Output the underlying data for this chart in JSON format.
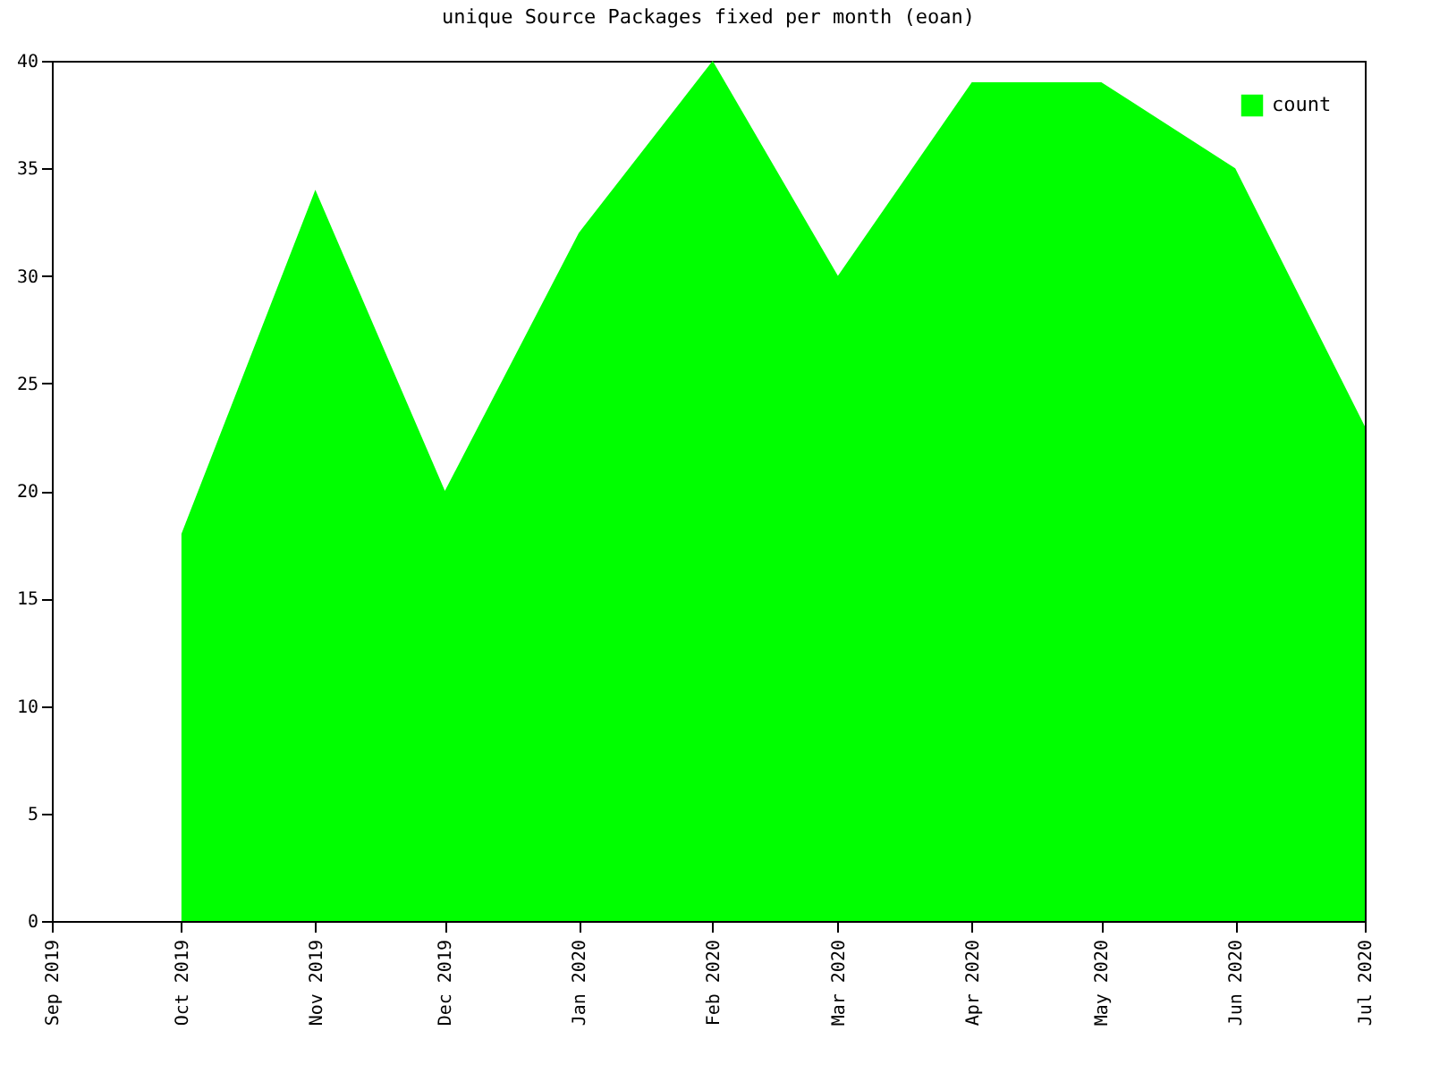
{
  "chart_data": {
    "type": "area",
    "title": "unique Source Packages fixed per month (eoan)",
    "x": [
      "2019-10",
      "2019-11",
      "2019-12",
      "2020-01",
      "2020-02",
      "2020-03",
      "2020-04",
      "2020-05",
      "2020-06",
      "2020-07"
    ],
    "series": [
      {
        "name": "count",
        "color": "#00ff00",
        "values": [
          18,
          34,
          20,
          32,
          40,
          30,
          39,
          39,
          35,
          23
        ]
      }
    ],
    "xlim": [
      "2019-09",
      "2020-07"
    ],
    "xticks": [
      {
        "value": "2019-09",
        "label": "Sep 2019"
      },
      {
        "value": "2019-10",
        "label": "Oct 2019"
      },
      {
        "value": "2019-11",
        "label": "Nov 2019"
      },
      {
        "value": "2019-12",
        "label": "Dec 2019"
      },
      {
        "value": "2020-01",
        "label": "Jan 2020"
      },
      {
        "value": "2020-02",
        "label": "Feb 2020"
      },
      {
        "value": "2020-03",
        "label": "Mar 2020"
      },
      {
        "value": "2020-04",
        "label": "Apr 2020"
      },
      {
        "value": "2020-05",
        "label": "May 2020"
      },
      {
        "value": "2020-06",
        "label": "Jun 2020"
      },
      {
        "value": "2020-07",
        "label": "Jul 2020"
      }
    ],
    "ylim": [
      0,
      40
    ],
    "yticks": [
      0,
      5,
      10,
      15,
      20,
      25,
      30,
      35,
      40
    ],
    "grid": false,
    "legend": "top right"
  }
}
